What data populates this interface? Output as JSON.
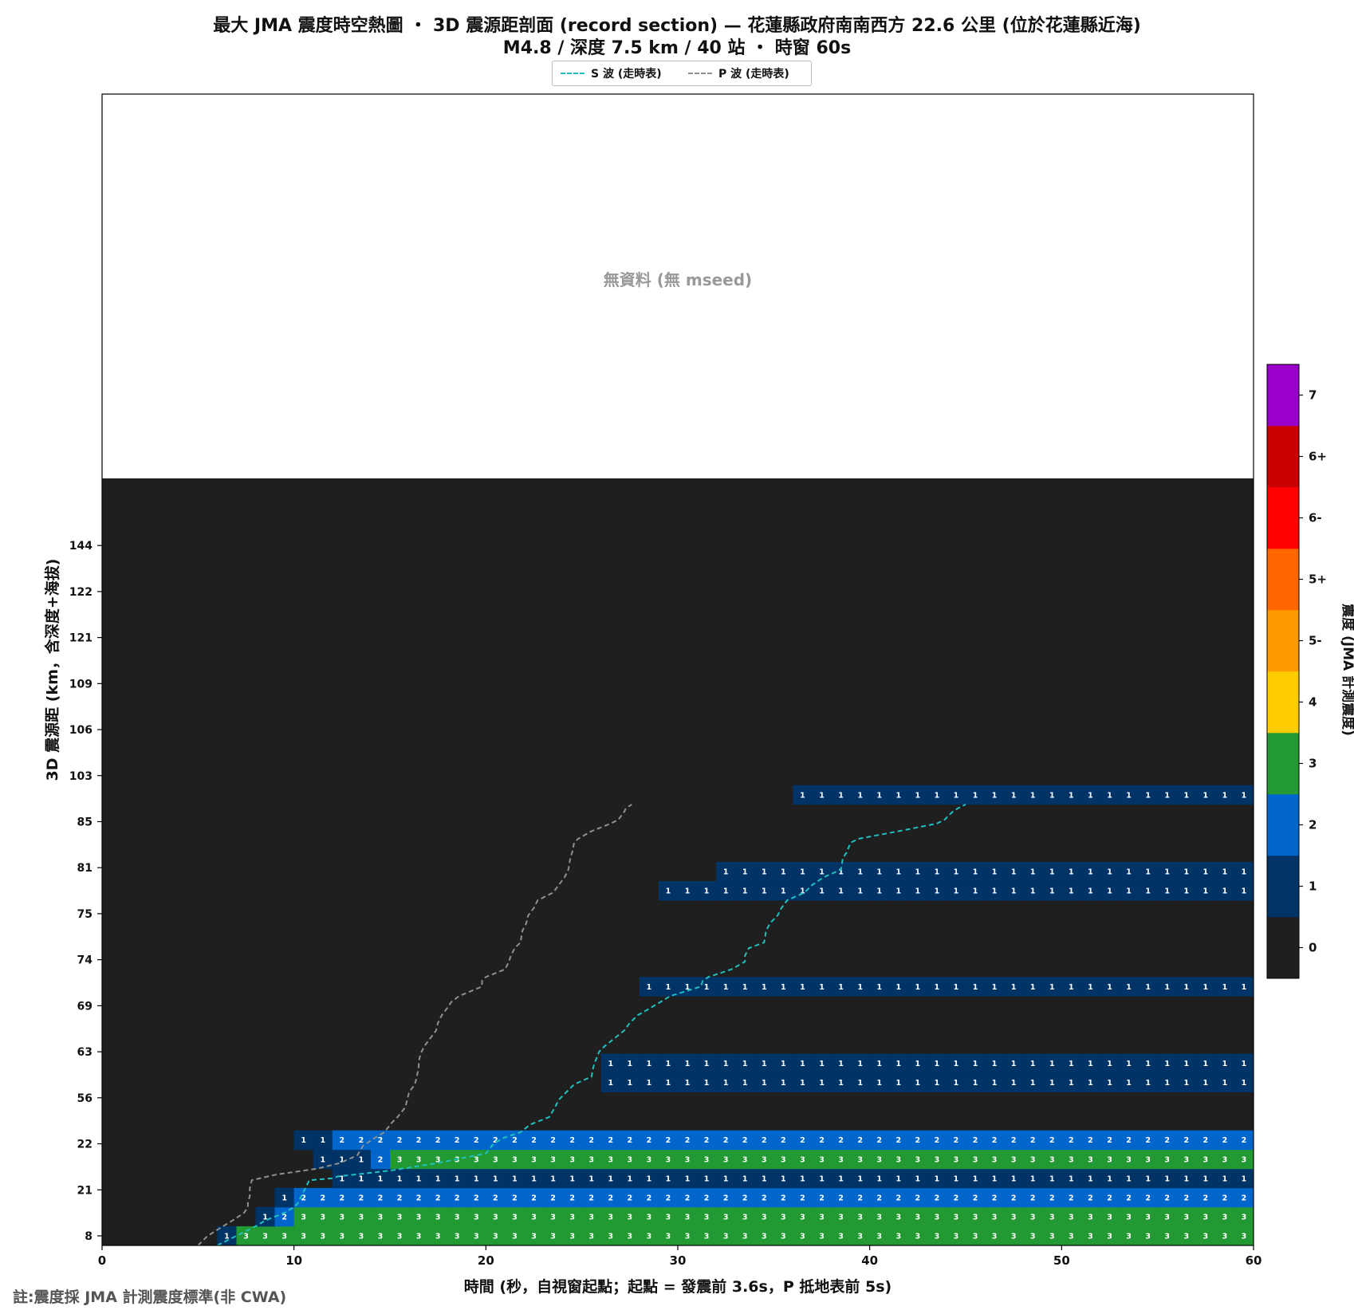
{
  "title_line1": "最大 JMA 震度時空熱圖 ・ 3D 震源距剖面 (record section) — 花蓮縣政府南南西方 22.6 公里 (位於花蓮縣近海)",
  "title_line2": "M4.8 / 深度 7.5 km / 40 站 ・ 時窗 60s",
  "legend": [
    {
      "label": "S 波 (走時表)",
      "color": "#20c0c0"
    },
    {
      "label": "P 波 (走時表)",
      "color": "#909090"
    }
  ],
  "no_data_label": "無資料 (無 mseed)",
  "footnote": "註:震度採 JMA 計測震度標準(非 CWA)",
  "chart_data": {
    "type": "heatmap",
    "xlabel": "時間 (秒，自視窗起點；起點 = 發震前 3.6s，P 抵地表前 5s)",
    "ylabel": "3D 震源距 (km，含深度+海拔)",
    "xlim": [
      0,
      60
    ],
    "x_ticks": [
      0,
      10,
      20,
      30,
      40,
      50,
      60
    ],
    "y_ticks": [
      "8",
      "21",
      "22",
      "56",
      "63",
      "69",
      "74",
      "75",
      "81",
      "85",
      "103",
      "106",
      "109",
      "121",
      "122",
      "144"
    ],
    "time_step_s": 1,
    "colorbar": {
      "label": "震度 (JMA 計測震度)",
      "levels": [
        {
          "label": "0",
          "color": "#1f1f1f"
        },
        {
          "label": "1",
          "color": "#003366"
        },
        {
          "label": "2",
          "color": "#0066cc"
        },
        {
          "label": "3",
          "color": "#229933"
        },
        {
          "label": "4",
          "color": "#ffcc00"
        },
        {
          "label": "5-",
          "color": "#ff9900"
        },
        {
          "label": "5+",
          "color": "#ff6600"
        },
        {
          "label": "6-",
          "color": "#ff0000"
        },
        {
          "label": "6+",
          "color": "#cc0000"
        },
        {
          "label": "7",
          "color": "#9900cc"
        }
      ]
    },
    "station_rows": [
      {
        "segments": [
          [
            6,
            1
          ],
          [
            7,
            3
          ]
        ]
      },
      {
        "segments": [
          [
            8,
            1
          ],
          [
            9,
            2
          ],
          [
            10,
            3
          ]
        ]
      },
      {
        "segments": [
          [
            9,
            1
          ],
          [
            10,
            2
          ]
        ]
      },
      {
        "segments": [
          [
            12,
            1
          ]
        ]
      },
      {
        "segments": [
          [
            11,
            1
          ],
          [
            14,
            2
          ],
          [
            15,
            3
          ]
        ]
      },
      {
        "segments": [
          [
            10,
            1
          ],
          [
            12,
            2
          ]
        ]
      },
      {
        "segments": []
      },
      {
        "segments": []
      },
      {
        "segments": [
          [
            26,
            1
          ]
        ]
      },
      {
        "segments": [
          [
            26,
            1
          ]
        ]
      },
      {
        "segments": []
      },
      {
        "segments": []
      },
      {
        "segments": []
      },
      {
        "segments": [
          [
            28,
            1
          ]
        ]
      },
      {
        "segments": []
      },
      {
        "segments": []
      },
      {
        "segments": []
      },
      {
        "segments": []
      },
      {
        "segments": [
          [
            29,
            1
          ]
        ]
      },
      {
        "segments": [
          [
            32,
            1
          ]
        ]
      },
      {
        "segments": []
      },
      {
        "segments": []
      },
      {
        "segments": []
      },
      {
        "segments": [
          [
            36,
            1
          ]
        ]
      },
      {
        "segments": []
      },
      {
        "segments": []
      },
      {
        "segments": []
      },
      {
        "segments": []
      },
      {
        "segments": []
      },
      {
        "segments": []
      },
      {
        "segments": []
      },
      {
        "segments": []
      },
      {
        "segments": []
      },
      {
        "segments": []
      },
      {
        "segments": []
      },
      {
        "segments": []
      },
      {
        "segments": []
      },
      {
        "segments": []
      },
      {
        "segments": []
      },
      {
        "segments": []
      }
    ],
    "series": [
      {
        "name": "S 波 (走時表)",
        "points": [
          [
            6,
            0
          ],
          [
            7,
            0.5
          ],
          [
            8,
            1
          ],
          [
            8.5,
            1.3
          ],
          [
            9.5,
            1.7
          ],
          [
            10,
            2
          ],
          [
            10.2,
            2.2
          ],
          [
            10.4,
            2.6
          ],
          [
            10.6,
            3
          ],
          [
            10.8,
            3.4
          ],
          [
            12,
            3.5
          ],
          [
            12.3,
            3.6
          ],
          [
            15,
            3.9
          ],
          [
            17.5,
            4.3
          ],
          [
            20,
            4.8
          ],
          [
            20.4,
            5.3
          ],
          [
            20.9,
            5.6
          ],
          [
            21.8,
            5.9
          ],
          [
            22.3,
            6.3
          ],
          [
            23.3,
            6.7
          ],
          [
            23.6,
            7.2
          ],
          [
            23.8,
            7.6
          ],
          [
            24.2,
            8
          ],
          [
            24.6,
            8.4
          ],
          [
            25.5,
            8.8
          ],
          [
            25.6,
            9.3
          ],
          [
            25.7,
            9.6
          ],
          [
            25.9,
            10.1
          ],
          [
            26.2,
            10.4
          ],
          [
            26.7,
            10.8
          ],
          [
            27.2,
            11.2
          ],
          [
            27.5,
            11.6
          ],
          [
            27.9,
            12
          ],
          [
            28.6,
            12.4
          ],
          [
            29.1,
            12.7
          ],
          [
            29.6,
            13
          ],
          [
            31.2,
            13.5
          ],
          [
            31.3,
            13.8
          ],
          [
            31.6,
            14
          ],
          [
            32.8,
            14.4
          ],
          [
            33.5,
            14.8
          ],
          [
            33.5,
            15.1
          ],
          [
            33.7,
            15.5
          ],
          [
            34.5,
            15.8
          ],
          [
            34.6,
            16.4
          ],
          [
            34.8,
            16.8
          ],
          [
            35.2,
            17.2
          ],
          [
            35.4,
            17.6
          ],
          [
            35.7,
            18
          ],
          [
            36.6,
            18.4
          ],
          [
            37,
            18.8
          ],
          [
            37.6,
            19.2
          ],
          [
            38.5,
            19.6
          ],
          [
            38.6,
            20.2
          ],
          [
            38.8,
            20.5
          ],
          [
            39,
            21
          ],
          [
            39.4,
            21.2
          ],
          [
            41.5,
            21.6
          ],
          [
            42.5,
            21.8
          ],
          [
            43.5,
            22
          ],
          [
            43.9,
            22.2
          ],
          [
            44.3,
            22.6
          ],
          [
            44.6,
            22.8
          ],
          [
            45,
            23
          ]
        ]
      },
      {
        "name": "P 波 (走時表)",
        "points": [
          [
            5,
            0
          ],
          [
            5.5,
            0.5
          ],
          [
            6.3,
            1
          ],
          [
            6.8,
            1.3
          ],
          [
            7.4,
            1.7
          ],
          [
            7.6,
            2
          ],
          [
            7.6,
            2.2
          ],
          [
            7.7,
            2.6
          ],
          [
            7.7,
            3
          ],
          [
            7.8,
            3.4
          ],
          [
            9.1,
            3.7
          ],
          [
            11.2,
            4
          ],
          [
            12.4,
            4.3
          ],
          [
            13.3,
            4.7
          ],
          [
            13.6,
            5.2
          ],
          [
            14.2,
            5.6
          ],
          [
            14.7,
            5.9
          ],
          [
            15.1,
            6.4
          ],
          [
            15.4,
            6.7
          ],
          [
            15.8,
            7.2
          ],
          [
            15.9,
            7.6
          ],
          [
            16,
            8
          ],
          [
            16.3,
            8.4
          ],
          [
            16.4,
            8.8
          ],
          [
            16.5,
            9.3
          ],
          [
            16.5,
            9.6
          ],
          [
            16.6,
            10
          ],
          [
            16.8,
            10.4
          ],
          [
            17.1,
            10.8
          ],
          [
            17.4,
            11.2
          ],
          [
            17.5,
            11.6
          ],
          [
            17.7,
            12
          ],
          [
            18,
            12.4
          ],
          [
            18.2,
            12.7
          ],
          [
            18.6,
            13
          ],
          [
            19.8,
            13.5
          ],
          [
            19.8,
            13.8
          ],
          [
            20,
            14
          ],
          [
            21,
            14.4
          ],
          [
            21.2,
            14.8
          ],
          [
            21.3,
            15.1
          ],
          [
            21.5,
            15.5
          ],
          [
            21.8,
            15.8
          ],
          [
            21.9,
            16.4
          ],
          [
            22.1,
            16.8
          ],
          [
            22.2,
            17.2
          ],
          [
            22.5,
            17.6
          ],
          [
            22.7,
            18
          ],
          [
            23.5,
            18.4
          ],
          [
            23.8,
            18.8
          ],
          [
            24.1,
            19.2
          ],
          [
            24.3,
            19.6
          ],
          [
            24.4,
            20.2
          ],
          [
            24.5,
            20.5
          ],
          [
            24.6,
            21
          ],
          [
            24.8,
            21.2
          ],
          [
            25.5,
            21.6
          ],
          [
            26,
            21.8
          ],
          [
            26.5,
            22
          ],
          [
            26.9,
            22.2
          ],
          [
            27.2,
            22.6
          ],
          [
            27.3,
            22.8
          ],
          [
            27.6,
            23
          ]
        ]
      }
    ]
  }
}
